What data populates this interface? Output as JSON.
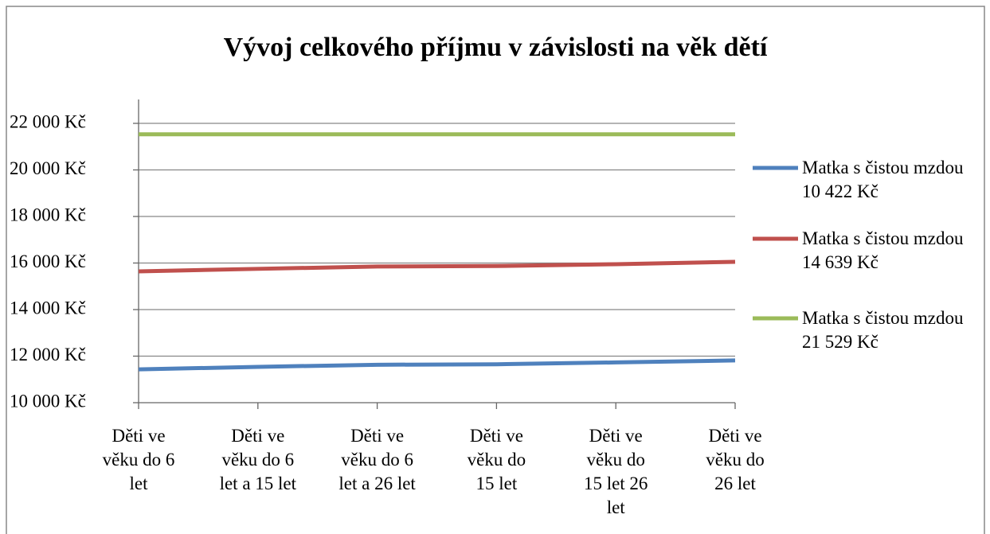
{
  "chart_data": {
    "type": "line",
    "title": "Vývoj celkového příjmu v závislosti na věk dětí",
    "categories": [
      "Děti ve věku do 6 let",
      "Děti ve věku do 6 let a 15 let",
      "Děti ve věku do 6 let a 26 let",
      "Děti ve věku do 15 let",
      "Děti ve věku do 15 let 26 let",
      "Děti ve věku do 26 let"
    ],
    "series": [
      {
        "name": "Matka s čistou mzdou 10 422 Kč",
        "color": "#4f81bd",
        "values": [
          11430,
          11540,
          11630,
          11650,
          11730,
          11815
        ]
      },
      {
        "name": "Matka s čistou mzdou 14 639 Kč",
        "color": "#c0504d",
        "values": [
          15641,
          15750,
          15850,
          15870,
          15950,
          16051
        ]
      },
      {
        "name": "Matka s čistou mzdou 21 529 Kč",
        "color": "#9bbb59",
        "values": [
          21529,
          21529,
          21529,
          21529,
          21529,
          21529
        ]
      }
    ],
    "ylim": [
      10000,
      22000
    ],
    "yticks": [
      {
        "value": 10000,
        "label": "10 000 Kč"
      },
      {
        "value": 12000,
        "label": "12 000 Kč"
      },
      {
        "value": 14000,
        "label": "14 000 Kč"
      },
      {
        "value": 16000,
        "label": "16 000 Kč"
      },
      {
        "value": 18000,
        "label": "18 000 Kč"
      },
      {
        "value": 20000,
        "label": "20 000 Kč"
      },
      {
        "value": 22000,
        "label": "22 000 Kč"
      }
    ],
    "grid": true,
    "legend": "right"
  }
}
